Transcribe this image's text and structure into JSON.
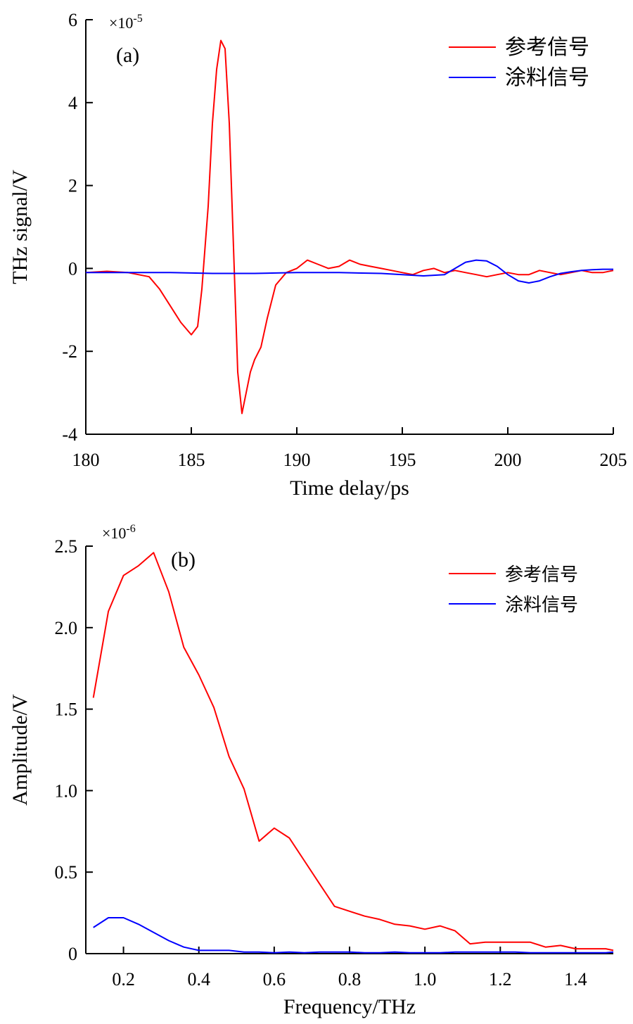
{
  "chart_data": [
    {
      "type": "line",
      "panel_label": "(a)",
      "multiplier_base": "×10",
      "multiplier_exp": "-5",
      "xlabel": "Time delay/ps",
      "ylabel": "THz signal/V",
      "xlim": [
        180,
        205
      ],
      "ylim": [
        -4,
        6
      ],
      "xticks": [
        "180",
        "185",
        "190",
        "195",
        "200",
        "205"
      ],
      "yticks": [
        "-4",
        "-2",
        "0",
        "2",
        "4",
        "6"
      ],
      "legend_position": "top-right",
      "series": [
        {
          "name": "参考信号",
          "color": "#ff0000",
          "x": [
            180,
            181,
            182,
            183,
            183.5,
            184,
            184.5,
            185,
            185.3,
            185.5,
            185.8,
            186,
            186.2,
            186.4,
            186.6,
            186.8,
            187,
            187.2,
            187.4,
            187.6,
            187.8,
            188,
            188.3,
            188.6,
            189,
            189.5,
            190,
            190.5,
            191,
            191.5,
            192,
            192.5,
            193,
            193.5,
            194,
            194.5,
            195,
            195.5,
            196,
            196.5,
            197,
            197.5,
            198,
            198.5,
            199,
            199.5,
            200,
            200.5,
            201,
            201.5,
            202,
            202.5,
            203,
            203.5,
            204,
            204.5,
            205
          ],
          "y": [
            -0.1,
            -0.07,
            -0.1,
            -0.2,
            -0.5,
            -0.9,
            -1.3,
            -1.6,
            -1.4,
            -0.5,
            1.5,
            3.5,
            4.8,
            5.5,
            5.3,
            3.5,
            0.5,
            -2.5,
            -3.5,
            -3.0,
            -2.5,
            -2.2,
            -1.9,
            -1.2,
            -0.4,
            -0.1,
            0.0,
            0.2,
            0.1,
            0.0,
            0.05,
            0.2,
            0.1,
            0.05,
            0.0,
            -0.05,
            -0.1,
            -0.15,
            -0.05,
            0.0,
            -0.1,
            -0.05,
            -0.1,
            -0.15,
            -0.2,
            -0.15,
            -0.1,
            -0.15,
            -0.15,
            -0.05,
            -0.1,
            -0.15,
            -0.1,
            -0.05,
            -0.1,
            -0.1,
            -0.05
          ]
        },
        {
          "name": "涂料信号",
          "color": "#0000ff",
          "x": [
            180,
            182,
            184,
            186,
            188,
            190,
            192,
            194,
            195,
            196,
            197,
            197.5,
            198,
            198.5,
            199,
            199.5,
            200,
            200.5,
            201,
            201.5,
            202,
            202.5,
            203,
            203.5,
            204,
            204.5,
            205
          ],
          "y": [
            -0.1,
            -0.1,
            -0.1,
            -0.12,
            -0.12,
            -0.1,
            -0.1,
            -0.12,
            -0.15,
            -0.18,
            -0.15,
            0.0,
            0.15,
            0.2,
            0.18,
            0.05,
            -0.15,
            -0.3,
            -0.35,
            -0.3,
            -0.2,
            -0.12,
            -0.08,
            -0.05,
            -0.03,
            -0.02,
            -0.02
          ]
        }
      ]
    },
    {
      "type": "line",
      "panel_label": "(b)",
      "multiplier_base": "×10",
      "multiplier_exp": "-6",
      "xlabel": "Frequency/THz",
      "ylabel": "Amplitude/V",
      "xlim": [
        0.1,
        1.5
      ],
      "ylim": [
        0,
        2.5
      ],
      "xticks": [
        "0.2",
        "0.4",
        "0.6",
        "0.8",
        "1.0",
        "1.2",
        "1.4"
      ],
      "yticks": [
        "0",
        "0.5",
        "1.0",
        "1.5",
        "2.0",
        "2.5"
      ],
      "legend_position": "top-right",
      "series": [
        {
          "name": "参考信号",
          "color": "#ff0000",
          "x": [
            0.12,
            0.16,
            0.2,
            0.24,
            0.28,
            0.32,
            0.36,
            0.4,
            0.44,
            0.48,
            0.52,
            0.56,
            0.6,
            0.64,
            0.68,
            0.72,
            0.76,
            0.8,
            0.84,
            0.88,
            0.92,
            0.96,
            1.0,
            1.04,
            1.08,
            1.12,
            1.16,
            1.2,
            1.24,
            1.28,
            1.32,
            1.36,
            1.4,
            1.44,
            1.48,
            1.5
          ],
          "y": [
            1.57,
            2.1,
            2.32,
            2.38,
            2.46,
            2.22,
            1.88,
            1.71,
            1.51,
            1.21,
            1.01,
            0.69,
            0.77,
            0.71,
            0.57,
            0.43,
            0.29,
            0.26,
            0.23,
            0.21,
            0.18,
            0.17,
            0.15,
            0.17,
            0.14,
            0.06,
            0.07,
            0.07,
            0.07,
            0.07,
            0.04,
            0.05,
            0.03,
            0.03,
            0.03,
            0.02
          ]
        },
        {
          "name": "涂料信号",
          "color": "#0000ff",
          "x": [
            0.12,
            0.16,
            0.2,
            0.24,
            0.28,
            0.32,
            0.36,
            0.4,
            0.44,
            0.48,
            0.52,
            0.56,
            0.6,
            0.64,
            0.68,
            0.72,
            0.76,
            0.8,
            0.84,
            0.88,
            0.92,
            0.96,
            1.0,
            1.04,
            1.08,
            1.12,
            1.16,
            1.2,
            1.24,
            1.28,
            1.32,
            1.36,
            1.4,
            1.44,
            1.48,
            1.5
          ],
          "y": [
            0.16,
            0.22,
            0.22,
            0.18,
            0.13,
            0.08,
            0.04,
            0.02,
            0.02,
            0.02,
            0.01,
            0.01,
            0.005,
            0.01,
            0.005,
            0.01,
            0.01,
            0.01,
            0.005,
            0.005,
            0.01,
            0.005,
            0.005,
            0.005,
            0.01,
            0.01,
            0.01,
            0.01,
            0.01,
            0.005,
            0.005,
            0.005,
            0.005,
            0.005,
            0.005,
            0.01
          ]
        }
      ]
    }
  ]
}
